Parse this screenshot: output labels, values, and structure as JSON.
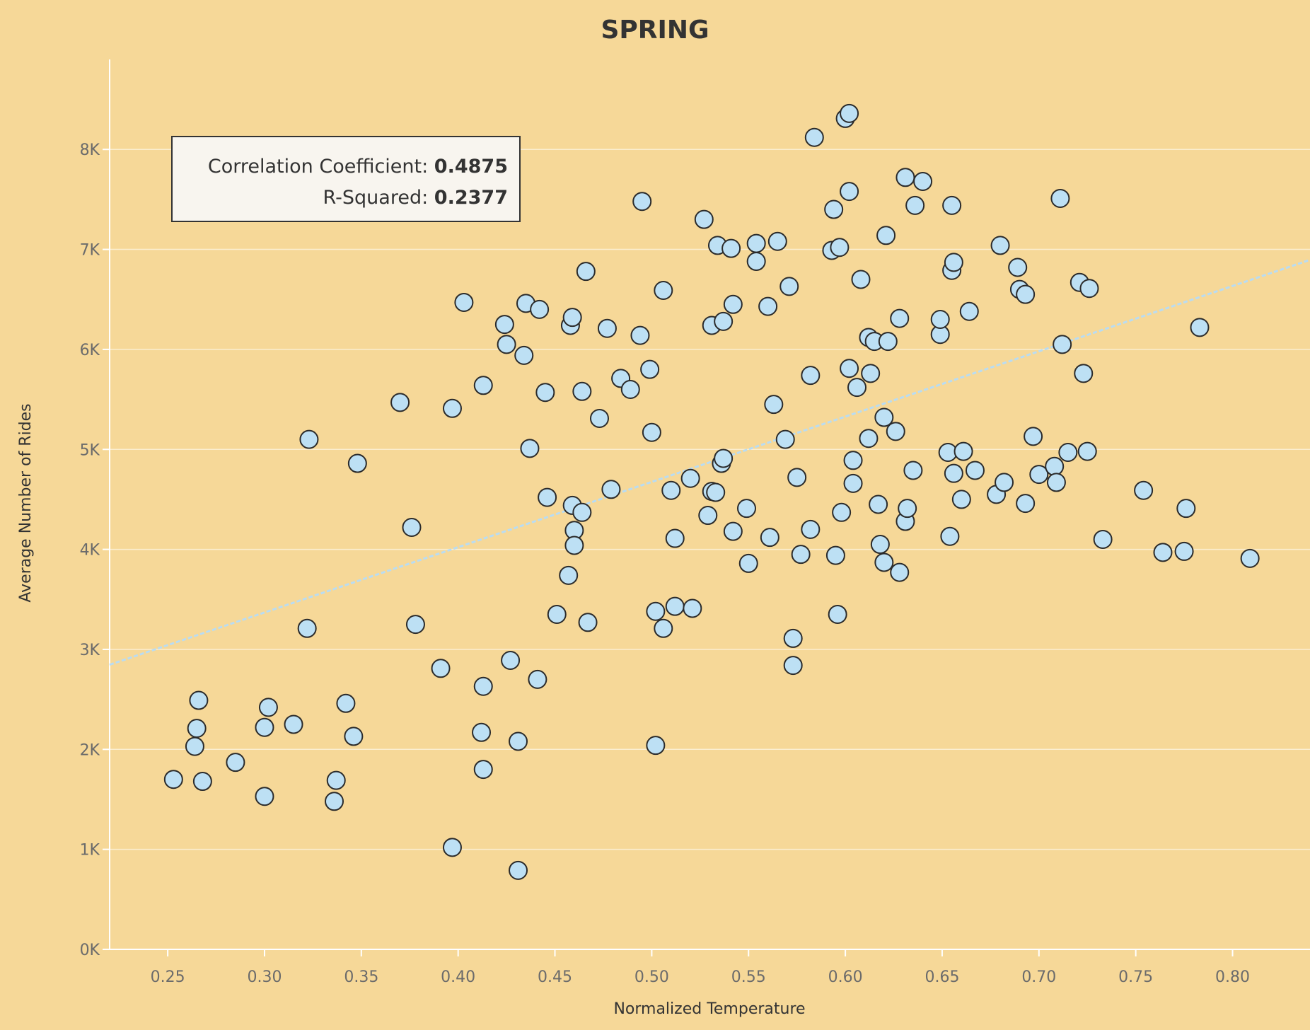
{
  "chart_data": {
    "type": "scatter",
    "title": "SPRING",
    "xlabel": "Normalized Temperature",
    "ylabel": "Average Number of Rides",
    "xlim": [
      0.22,
      0.84
    ],
    "ylim": [
      0,
      8900
    ],
    "x_ticks": [
      0.25,
      0.3,
      0.35,
      0.4,
      0.45,
      0.5,
      0.55,
      0.6,
      0.65,
      0.7,
      0.75,
      0.8
    ],
    "x_tick_labels": [
      "0.25",
      "0.30",
      "0.35",
      "0.40",
      "0.45",
      "0.50",
      "0.55",
      "0.60",
      "0.65",
      "0.70",
      "0.75",
      "0.80"
    ],
    "y_ticks": [
      0,
      1000,
      2000,
      3000,
      4000,
      5000,
      6000,
      7000,
      8000
    ],
    "y_tick_labels": [
      "0K",
      "1K",
      "2K",
      "3K",
      "4K",
      "5K",
      "6K",
      "7K",
      "8K"
    ],
    "grid": "horizontal",
    "trendline": {
      "intercept": 1410,
      "slope": 6530
    },
    "stats": {
      "correlation_label": "Correlation Coefficient:",
      "correlation_value": "0.4875",
      "r_squared_label": "R-Squared:",
      "r_squared_value": "0.2377"
    },
    "colors": {
      "point_fill": "#bde0f4",
      "point_stroke": "#2b2b2b",
      "trend": "#b9dcf2",
      "background": "#f6d898"
    },
    "points": [
      [
        0.253,
        1700
      ],
      [
        0.264,
        2030
      ],
      [
        0.265,
        2210
      ],
      [
        0.266,
        2490
      ],
      [
        0.268,
        1680
      ],
      [
        0.285,
        1870
      ],
      [
        0.3,
        1530
      ],
      [
        0.3,
        2220
      ],
      [
        0.302,
        2420
      ],
      [
        0.315,
        2250
      ],
      [
        0.322,
        3210
      ],
      [
        0.323,
        5100
      ],
      [
        0.336,
        1480
      ],
      [
        0.337,
        1690
      ],
      [
        0.342,
        2460
      ],
      [
        0.346,
        2130
      ],
      [
        0.348,
        4860
      ],
      [
        0.37,
        5470
      ],
      [
        0.376,
        4220
      ],
      [
        0.378,
        3250
      ],
      [
        0.391,
        2810
      ],
      [
        0.397,
        1020
      ],
      [
        0.397,
        5410
      ],
      [
        0.403,
        6470
      ],
      [
        0.412,
        2170
      ],
      [
        0.413,
        5640
      ],
      [
        0.413,
        2630
      ],
      [
        0.413,
        1800
      ],
      [
        0.424,
        6250
      ],
      [
        0.425,
        6050
      ],
      [
        0.427,
        2890
      ],
      [
        0.431,
        2080
      ],
      [
        0.431,
        790
      ],
      [
        0.434,
        5940
      ],
      [
        0.435,
        6460
      ],
      [
        0.437,
        5010
      ],
      [
        0.441,
        2700
      ],
      [
        0.442,
        6400
      ],
      [
        0.445,
        5570
      ],
      [
        0.446,
        4520
      ],
      [
        0.451,
        3350
      ],
      [
        0.457,
        3740
      ],
      [
        0.458,
        6240
      ],
      [
        0.459,
        6320
      ],
      [
        0.459,
        4440
      ],
      [
        0.46,
        4190
      ],
      [
        0.46,
        4040
      ],
      [
        0.464,
        5580
      ],
      [
        0.464,
        4370
      ],
      [
        0.466,
        6780
      ],
      [
        0.467,
        3270
      ],
      [
        0.473,
        5310
      ],
      [
        0.477,
        6210
      ],
      [
        0.479,
        4600
      ],
      [
        0.484,
        5710
      ],
      [
        0.489,
        5600
      ],
      [
        0.494,
        6140
      ],
      [
        0.495,
        7480
      ],
      [
        0.499,
        5800
      ],
      [
        0.5,
        5170
      ],
      [
        0.502,
        3380
      ],
      [
        0.502,
        2040
      ],
      [
        0.506,
        3210
      ],
      [
        0.506,
        6590
      ],
      [
        0.51,
        4590
      ],
      [
        0.512,
        4110
      ],
      [
        0.512,
        3430
      ],
      [
        0.52,
        4710
      ],
      [
        0.521,
        3410
      ],
      [
        0.527,
        7300
      ],
      [
        0.529,
        4340
      ],
      [
        0.531,
        4580
      ],
      [
        0.531,
        6240
      ],
      [
        0.533,
        4570
      ],
      [
        0.534,
        7040
      ],
      [
        0.536,
        4860
      ],
      [
        0.537,
        4910
      ],
      [
        0.537,
        6280
      ],
      [
        0.541,
        7010
      ],
      [
        0.542,
        6450
      ],
      [
        0.542,
        4180
      ],
      [
        0.549,
        4410
      ],
      [
        0.55,
        3860
      ],
      [
        0.554,
        7060
      ],
      [
        0.554,
        6880
      ],
      [
        0.56,
        6430
      ],
      [
        0.561,
        4120
      ],
      [
        0.563,
        5450
      ],
      [
        0.565,
        7080
      ],
      [
        0.569,
        5100
      ],
      [
        0.571,
        6630
      ],
      [
        0.573,
        3110
      ],
      [
        0.573,
        2840
      ],
      [
        0.575,
        4720
      ],
      [
        0.577,
        3950
      ],
      [
        0.582,
        5740
      ],
      [
        0.582,
        4200
      ],
      [
        0.584,
        8120
      ],
      [
        0.593,
        6990
      ],
      [
        0.594,
        7400
      ],
      [
        0.595,
        3940
      ],
      [
        0.596,
        3350
      ],
      [
        0.597,
        7020
      ],
      [
        0.598,
        4370
      ],
      [
        0.6,
        8310
      ],
      [
        0.602,
        8360
      ],
      [
        0.602,
        5810
      ],
      [
        0.602,
        7580
      ],
      [
        0.604,
        4890
      ],
      [
        0.604,
        4660
      ],
      [
        0.606,
        5620
      ],
      [
        0.608,
        6700
      ],
      [
        0.612,
        5110
      ],
      [
        0.612,
        6120
      ],
      [
        0.613,
        5760
      ],
      [
        0.615,
        6080
      ],
      [
        0.617,
        4450
      ],
      [
        0.618,
        4050
      ],
      [
        0.62,
        3870
      ],
      [
        0.62,
        5320
      ],
      [
        0.621,
        7140
      ],
      [
        0.622,
        6080
      ],
      [
        0.626,
        5180
      ],
      [
        0.628,
        6310
      ],
      [
        0.628,
        3770
      ],
      [
        0.631,
        4280
      ],
      [
        0.631,
        7720
      ],
      [
        0.632,
        4410
      ],
      [
        0.635,
        4790
      ],
      [
        0.636,
        7440
      ],
      [
        0.64,
        7680
      ],
      [
        0.649,
        6150
      ],
      [
        0.649,
        6300
      ],
      [
        0.653,
        4970
      ],
      [
        0.654,
        4130
      ],
      [
        0.655,
        6790
      ],
      [
        0.655,
        7440
      ],
      [
        0.656,
        4760
      ],
      [
        0.656,
        6870
      ],
      [
        0.66,
        4500
      ],
      [
        0.661,
        4980
      ],
      [
        0.664,
        6380
      ],
      [
        0.667,
        4790
      ],
      [
        0.678,
        4550
      ],
      [
        0.68,
        7040
      ],
      [
        0.682,
        4670
      ],
      [
        0.689,
        6820
      ],
      [
        0.69,
        6600
      ],
      [
        0.693,
        4460
      ],
      [
        0.693,
        6550
      ],
      [
        0.697,
        5130
      ],
      [
        0.7,
        4750
      ],
      [
        0.708,
        4830
      ],
      [
        0.709,
        4670
      ],
      [
        0.711,
        7510
      ],
      [
        0.712,
        6050
      ],
      [
        0.715,
        4970
      ],
      [
        0.721,
        6670
      ],
      [
        0.723,
        5760
      ],
      [
        0.725,
        4980
      ],
      [
        0.726,
        6610
      ],
      [
        0.733,
        4100
      ],
      [
        0.754,
        4590
      ],
      [
        0.764,
        3970
      ],
      [
        0.775,
        3980
      ],
      [
        0.776,
        4410
      ],
      [
        0.783,
        6220
      ],
      [
        0.809,
        3910
      ]
    ]
  }
}
